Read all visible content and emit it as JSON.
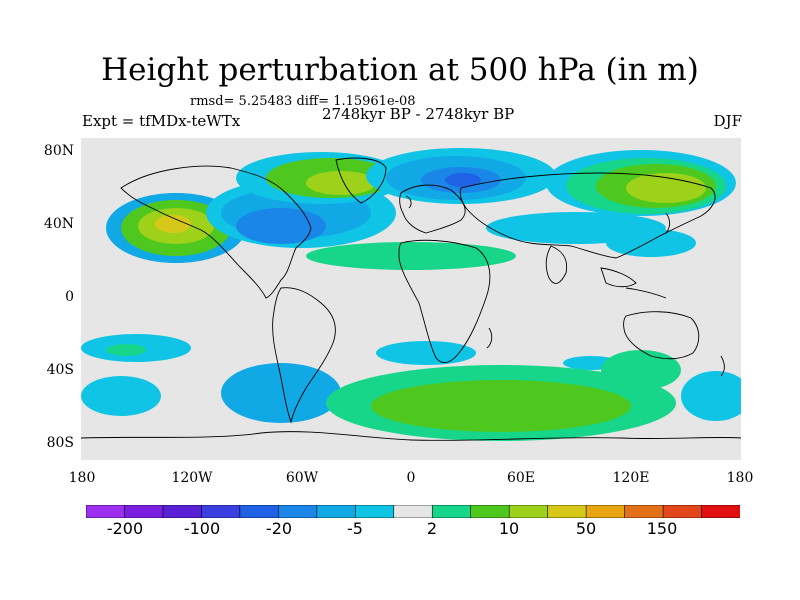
{
  "title": "Height perturbation at 500 hPa (in m)",
  "stats": "rmsd= 5.25483 diff= 1.15961e-08",
  "period": "2748kyr BP - 2748kyr BP",
  "experiment": "Expt = tfMDx-teWTx",
  "season": "DJF",
  "lat_labels": [
    "80N",
    "40N",
    "0",
    "40S",
    "80S"
  ],
  "lon_labels": [
    "180",
    "120W",
    "60W",
    "0",
    "60E",
    "120E",
    "180"
  ],
  "colorbar": {
    "colors": [
      "#9d2ff0",
      "#7a1fe0",
      "#5a20d6",
      "#3b3fe0",
      "#1f62e6",
      "#1a87e8",
      "#11a8e6",
      "#10c4e6",
      "#e6e6e6",
      "#17d68a",
      "#4ec81f",
      "#9ed21a",
      "#d6c818",
      "#e8a512",
      "#e3711a",
      "#e3461a",
      "#e01010"
    ],
    "labels": [
      "-200",
      "-100",
      "-20",
      "-5",
      "2",
      "10",
      "50",
      "150"
    ]
  }
}
